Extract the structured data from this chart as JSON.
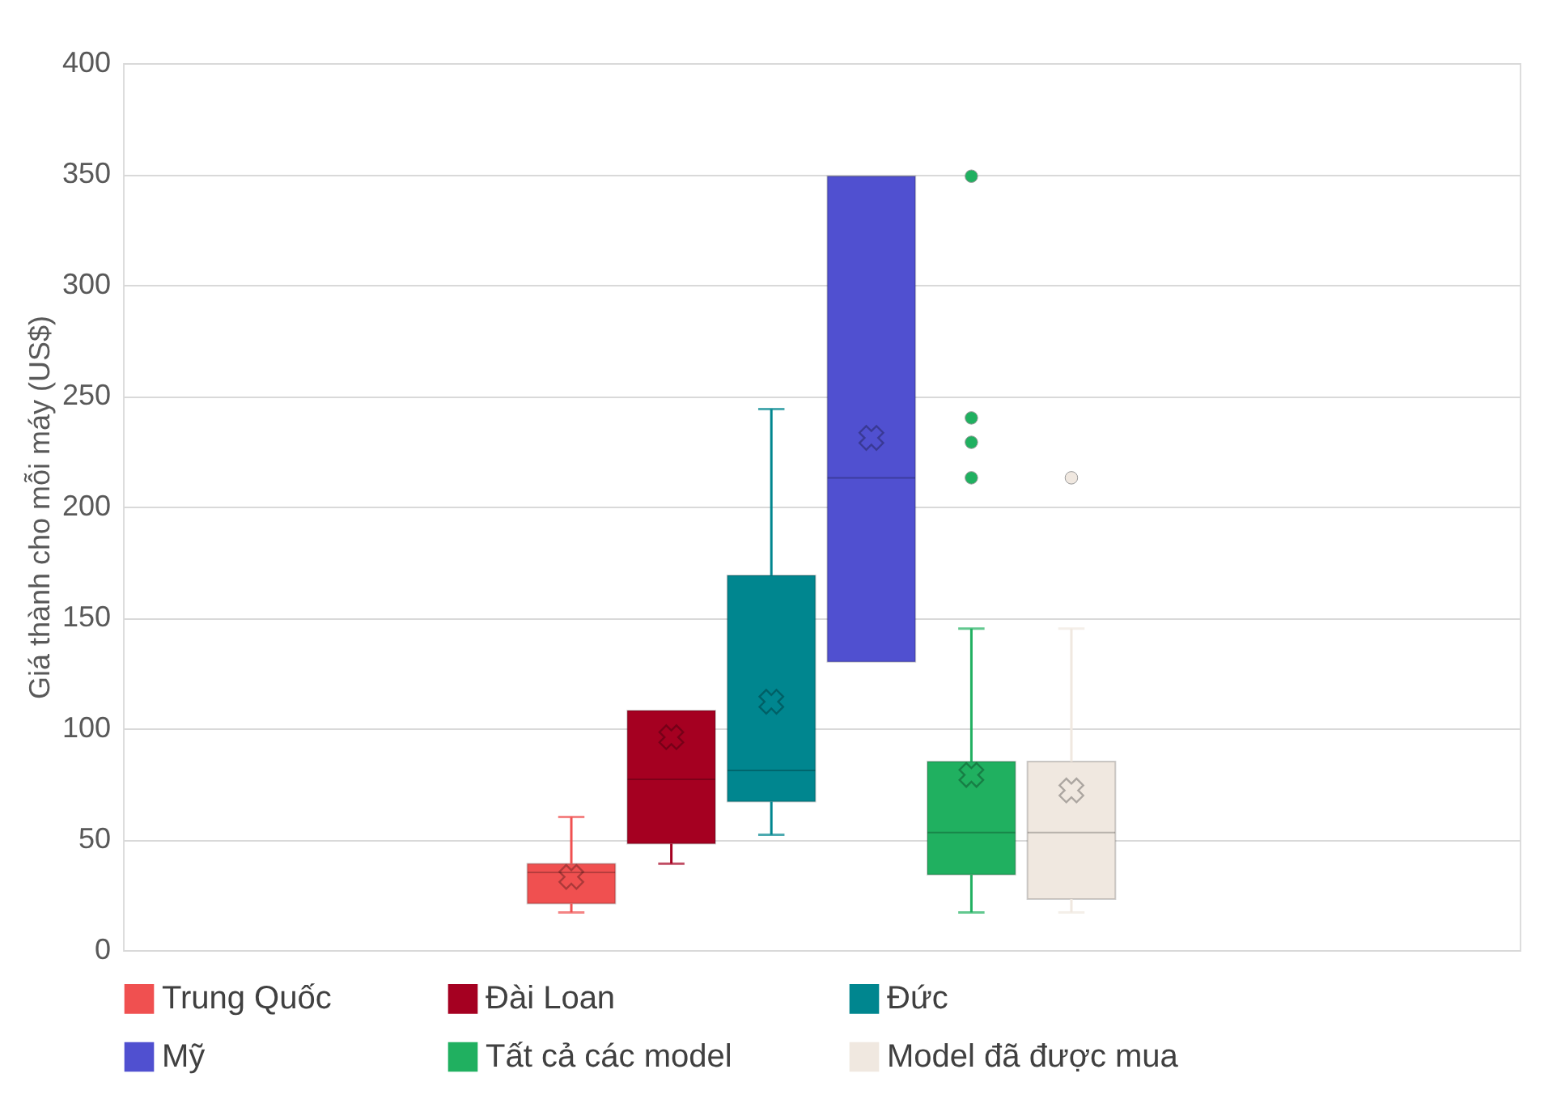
{
  "chart_data": {
    "type": "box",
    "ylabel": "Giá thành cho mỗi máy (US$)",
    "categories": [
      null
    ],
    "ylim": [
      0,
      400
    ],
    "yticks": [
      0,
      50,
      100,
      150,
      200,
      250,
      300,
      350,
      400
    ],
    "grid": "y",
    "legend": "bottom",
    "series": [
      {
        "name": "Trung Quốc",
        "color": "#f05050",
        "boxes": [
          {
            "low": 17,
            "q1": 21,
            "median": 35,
            "q3": 39,
            "high": 60,
            "mean": 33
          }
        ]
      },
      {
        "name": "Đài Loan",
        "color": "#a50021",
        "boxes": [
          {
            "low": 39,
            "q1": 48,
            "median": 77,
            "q3": 108,
            "high": 108,
            "mean": 96
          }
        ]
      },
      {
        "name": "Đức",
        "color": "#00868f",
        "boxes": [
          {
            "low": 52,
            "q1": 67,
            "median": 81,
            "q3": 169,
            "high": 244,
            "mean": 112
          }
        ]
      },
      {
        "name": "Mỹ",
        "color": "#5050d0",
        "boxes": [
          {
            "low": 130,
            "q1": 130,
            "median": 213,
            "q3": 349,
            "high": 349,
            "mean": 231
          }
        ]
      },
      {
        "name": "Tất cả các model",
        "color": "#20b060",
        "boxes": [
          {
            "low": 17,
            "q1": 34,
            "median": 53,
            "q3": 85,
            "high": 145,
            "mean": 79,
            "outliers": [
              349,
              240,
              229,
              213
            ]
          }
        ]
      },
      {
        "name": "Model đã được mua",
        "color": "#f0e8e0",
        "boxes": [
          {
            "low": 17,
            "q1": 23,
            "median": 53,
            "q3": 85,
            "high": 145,
            "mean": 72,
            "outliers": [
              213
            ]
          }
        ]
      }
    ]
  }
}
